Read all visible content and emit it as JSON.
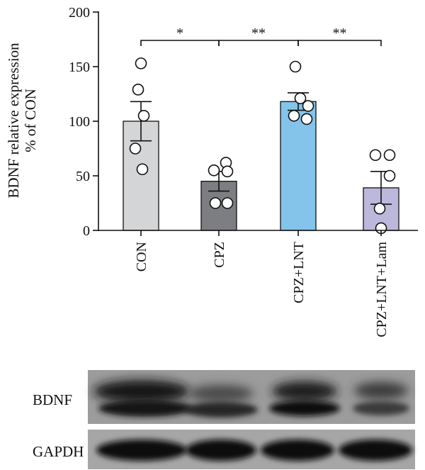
{
  "chart_data": {
    "type": "bar",
    "ylabel_line1": "BDNF relative expression",
    "ylabel_line2": "% of CON",
    "ylim": [
      0,
      200
    ],
    "yticks": [
      0,
      50,
      100,
      150,
      200
    ],
    "categories": [
      "CON",
      "CPZ",
      "CPZ+LNT",
      "CPZ+LNT+Lam"
    ],
    "values": [
      100,
      45,
      118,
      39
    ],
    "sem": [
      18,
      9,
      8,
      15
    ],
    "colors": [
      "#d4d5d6",
      "#7d7e82",
      "#84c3ea",
      "#bcb8dc"
    ],
    "points": [
      [
        153,
        129,
        105,
        75,
        56
      ],
      [
        62,
        55,
        54,
        25,
        25
      ],
      [
        150,
        121,
        114,
        105,
        102
      ],
      [
        69,
        69,
        50,
        20,
        2
      ]
    ],
    "significance": [
      {
        "from": 0,
        "to": 1,
        "label": "*"
      },
      {
        "from": 1,
        "to": 2,
        "label": "**"
      },
      {
        "from": 2,
        "to": 3,
        "label": "**"
      }
    ]
  },
  "blot": {
    "rows": [
      {
        "label": "BDNF"
      },
      {
        "label": "GAPDH"
      }
    ]
  }
}
